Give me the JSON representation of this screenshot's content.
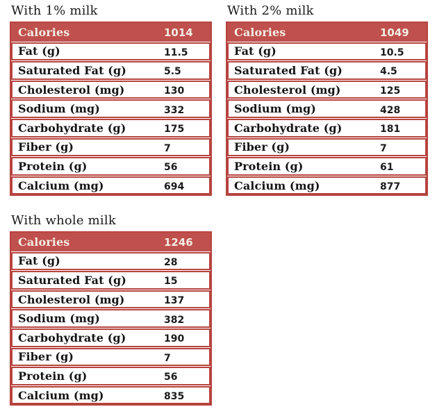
{
  "colors": {
    "header_bg": "#c0504d",
    "border": "#b7433e",
    "header_text": "#f2ede4"
  },
  "row_labels": [
    "Calories",
    "Fat (g)",
    "Saturated Fat (g)",
    "Cholesterol (mg)",
    "Sodium (mg)",
    "Carbohydrate (g)",
    "Fiber (g)",
    "Protein (g)",
    "Calcium (mg)"
  ],
  "tables": [
    {
      "title": "With 1% milk",
      "values": [
        "1014",
        "11.5",
        "5.5",
        "130",
        "332",
        "175",
        "7",
        "56",
        "694"
      ]
    },
    {
      "title": "With 2% milk",
      "values": [
        "1049",
        "10.5",
        "4.5",
        "125",
        "428",
        "181",
        "7",
        "61",
        "877"
      ]
    },
    {
      "title": "With whole milk",
      "values": [
        "1246",
        "28",
        "15",
        "137",
        "382",
        "190",
        "7",
        "56",
        "835"
      ]
    }
  ],
  "chart_data": [
    {
      "type": "table",
      "title": "With 1% milk",
      "categories": [
        "Calories",
        "Fat (g)",
        "Saturated Fat (g)",
        "Cholesterol (mg)",
        "Sodium (mg)",
        "Carbohydrate (g)",
        "Fiber (g)",
        "Protein (g)",
        "Calcium (mg)"
      ],
      "values": [
        1014,
        11.5,
        5.5,
        130,
        332,
        175,
        7,
        56,
        694
      ]
    },
    {
      "type": "table",
      "title": "With 2% milk",
      "categories": [
        "Calories",
        "Fat (g)",
        "Saturated Fat (g)",
        "Cholesterol (mg)",
        "Sodium (mg)",
        "Carbohydrate (g)",
        "Fiber (g)",
        "Protein (g)",
        "Calcium (mg)"
      ],
      "values": [
        1049,
        10.5,
        4.5,
        125,
        428,
        181,
        7,
        61,
        877
      ]
    },
    {
      "type": "table",
      "title": "With whole milk",
      "categories": [
        "Calories",
        "Fat (g)",
        "Saturated Fat (g)",
        "Cholesterol (mg)",
        "Sodium (mg)",
        "Carbohydrate (g)",
        "Fiber (g)",
        "Protein (g)",
        "Calcium (mg)"
      ],
      "values": [
        1246,
        28,
        15,
        137,
        382,
        190,
        7,
        56,
        835
      ]
    }
  ]
}
